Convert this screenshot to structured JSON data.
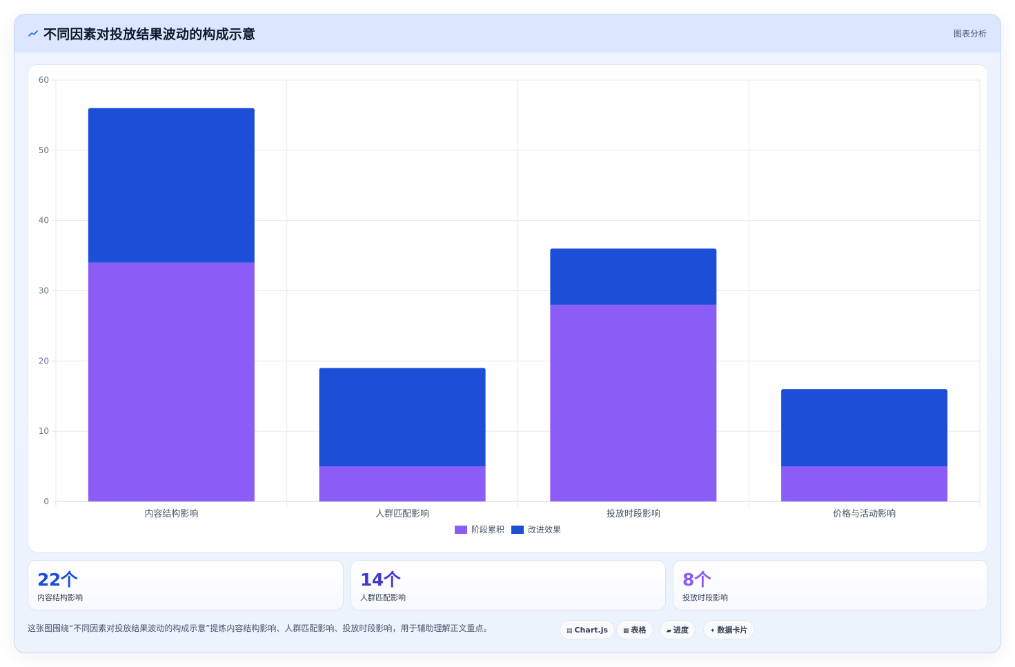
{
  "header": {
    "title": "不同因素对投放结果波动的构成示意",
    "link_label": "图表分析",
    "icon": "trend-line-icon"
  },
  "chart_data": {
    "type": "bar",
    "stacked": true,
    "categories": [
      "内容结构影响",
      "人群匹配影响",
      "投放时段影响",
      "价格与活动影响"
    ],
    "series": [
      {
        "name": "阶段累积",
        "values": [
          34,
          5,
          28,
          5
        ],
        "color": "#8b5cf6"
      },
      {
        "name": "改进效果",
        "values": [
          22,
          14,
          8,
          11
        ],
        "color": "#1d4ed8"
      }
    ],
    "ylim": [
      0,
      60
    ],
    "yticks": [
      0,
      10,
      20,
      30,
      40,
      50,
      60
    ],
    "grid": true,
    "legend_position": "bottom",
    "title": "",
    "xlabel": "",
    "ylabel": ""
  },
  "stats": [
    {
      "value": "22个",
      "label": "内容结构影响",
      "color": "#1d4ed8"
    },
    {
      "value": "14个",
      "label": "人群匹配影响",
      "color": "#4338ca"
    },
    {
      "value": "8个",
      "label": "投放时段影响",
      "color": "#8b5cf6"
    }
  ],
  "footer": {
    "text": "这张图围绕“不同因素对投放结果波动的构成示意”提炼内容结构影响、人群匹配影响、投放时段影响，用于辅助理解正文重点。"
  },
  "chips": [
    {
      "label": "Chart.js",
      "icon": "chart-icon"
    },
    {
      "label": "表格",
      "icon": "table-icon"
    },
    {
      "label": "进度",
      "icon": "progress-icon"
    },
    {
      "label": "数据卡片",
      "icon": "sparkle-icon"
    }
  ]
}
